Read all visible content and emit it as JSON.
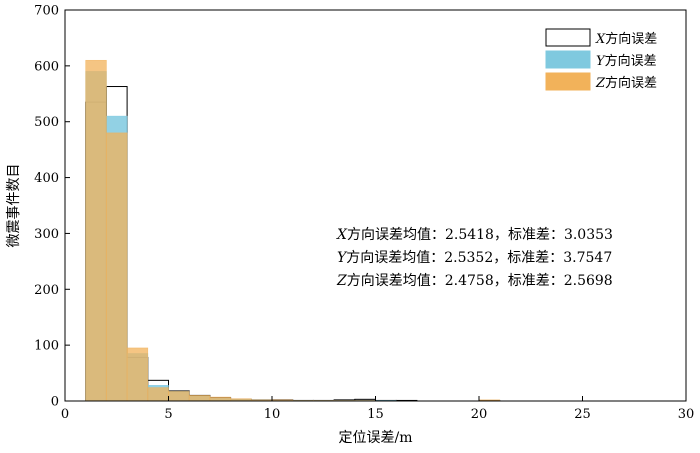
{
  "chart_data": {
    "type": "bar",
    "xlabel": "定位误差/m",
    "ylabel": "微震事件数目",
    "xlim": [
      0,
      30
    ],
    "ylim": [
      0,
      700
    ],
    "xticks": [
      0,
      5,
      10,
      15,
      20,
      25,
      30
    ],
    "yticks": [
      0,
      100,
      200,
      300,
      400,
      500,
      600,
      700
    ],
    "bin_edges": [
      0,
      1,
      2,
      3,
      4,
      5,
      6,
      7,
      8,
      9,
      10,
      11,
      12,
      13,
      14,
      15,
      16,
      17,
      18,
      19,
      20,
      21,
      22,
      23,
      24,
      25,
      26,
      27,
      28,
      29,
      30
    ],
    "series": [
      {
        "name": "X方向误差",
        "color": "#ffffff",
        "stroke": "#000000",
        "opacity": 1.0,
        "values": [
          0,
          535,
          563,
          78,
          37,
          18,
          10,
          6,
          3,
          2,
          2,
          1,
          1,
          2,
          3,
          1,
          1,
          0,
          0,
          0,
          1,
          0,
          0,
          0,
          0,
          0,
          0,
          0,
          0,
          0
        ]
      },
      {
        "name": "Y方向误差",
        "color": "#7fc9df",
        "stroke": "#7fc9df",
        "opacity": 0.85,
        "values": [
          0,
          590,
          510,
          85,
          28,
          17,
          9,
          5,
          3,
          2,
          1,
          1,
          1,
          1,
          1,
          1,
          0,
          0,
          0,
          0,
          0,
          0,
          0,
          0,
          0,
          0,
          0,
          0,
          0,
          0
        ]
      },
      {
        "name": "Z方向误差",
        "color": "#f2b25a",
        "stroke": "#f2b25a",
        "opacity": 0.75,
        "values": [
          0,
          610,
          480,
          95,
          24,
          17,
          10,
          7,
          4,
          2,
          2,
          1,
          1,
          1,
          1,
          0,
          0,
          0,
          0,
          0,
          2,
          0,
          0,
          0,
          0,
          0,
          0,
          0,
          0,
          0
        ]
      }
    ],
    "legend_placement": "top-right"
  },
  "legend": {
    "x": {
      "italic": "X",
      "rest": "方向误差"
    },
    "y": {
      "italic": "Y",
      "rest": "方向误差"
    },
    "z": {
      "italic": "Z",
      "rest": "方向误差"
    }
  },
  "stats": {
    "x": {
      "italic": "X",
      "rest": "方向误差均值：2.5418，标准差：3.0353"
    },
    "y": {
      "italic": "Y",
      "rest": "方向误差均值：2.5352，标准差：3.7547"
    },
    "z": {
      "italic": "Z",
      "rest": "方向误差均值：2.4758，标准差：2.5698"
    }
  }
}
